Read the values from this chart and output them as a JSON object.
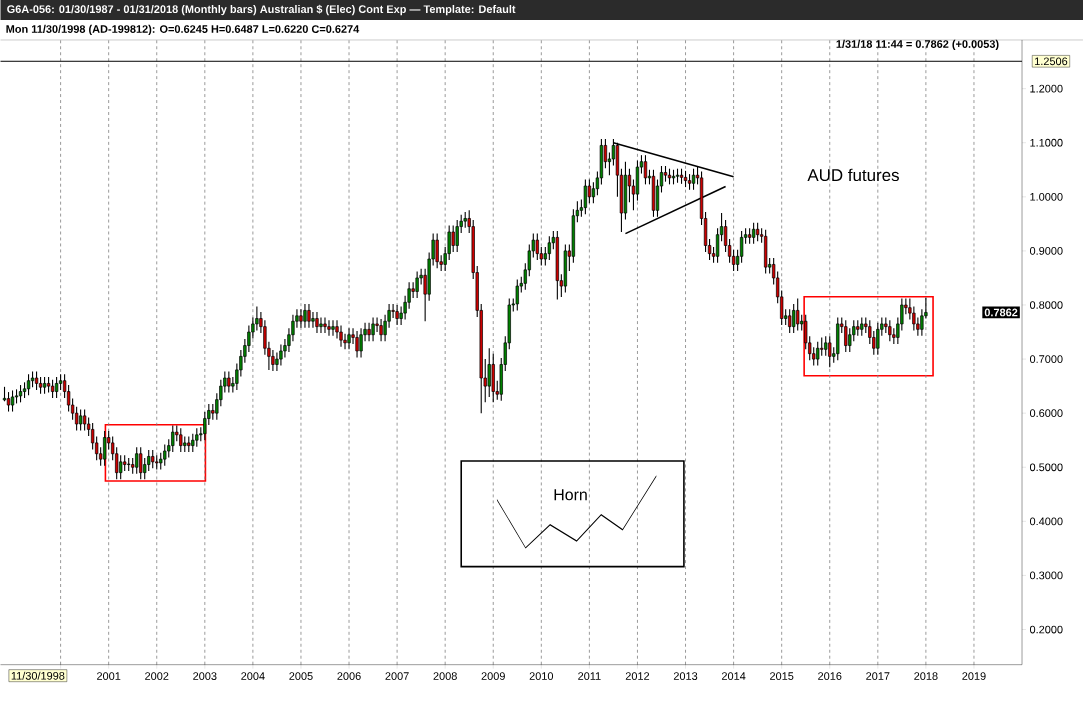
{
  "chart_data": {
    "type": "candlestick",
    "title": "G6A-056:  01/30/1987 - 01/31/2018  (Monthly bars)   Australian $ (Elec) Cont Exp  —  Template: Default",
    "subtitle": "Mon  11/30/1998 (AD-199812):  O=0.6245  H=0.6487  L=0.6220  C=0.6274",
    "annotations": [
      "AUD futures",
      "Horn",
      "1/31/18 11:44 = 0.7862 (+0.0053)",
      "11/30/1998",
      {
        "text": "0.7862",
        "y": 0.7862
      }
    ],
    "xlim": [
      "1998-10",
      "2020-01"
    ],
    "xticks": [
      {
        "value": "2000",
        "label": null
      },
      "2001",
      "2002",
      "2003",
      "2004",
      "2005",
      "2006",
      "2007",
      "2008",
      "2009",
      "2010",
      "2011",
      "2012",
      "2013",
      "2014",
      "2015",
      "2016",
      "2017",
      "2018",
      "2019"
    ],
    "ylim": [
      0.135,
      1.29
    ],
    "yticks": [
      {
        "value": 0.2,
        "label": "0.2000"
      },
      {
        "value": 0.3,
        "label": "0.3000"
      },
      {
        "value": 0.4,
        "label": "0.4000"
      },
      {
        "value": 0.5,
        "label": "0.5000"
      },
      {
        "value": 0.6,
        "label": "0.6000"
      },
      {
        "value": 0.7,
        "label": "0.7000"
      },
      {
        "value": 0.8,
        "label": "0.8000"
      },
      {
        "value": 0.9,
        "label": "0.9000"
      },
      {
        "value": 1.0,
        "label": "1.0000"
      },
      {
        "value": 1.1,
        "label": "1.1000"
      },
      {
        "value": 1.2,
        "label": "1.2000"
      }
    ],
    "grid": "x",
    "ref_lines": [
      {
        "axis": "y",
        "value": 1.2506,
        "label": "1.2506",
        "color": "#000000"
      }
    ],
    "series": [
      {
        "type": "line",
        "color": "#000000",
        "x": [
          "2011-07",
          "2014-01"
        ],
        "values": [
          1.1,
          1.037
        ]
      },
      {
        "type": "line",
        "color": "#000000",
        "x": [
          "2011-10",
          "2013-11"
        ],
        "values": [
          0.932,
          1.019
        ]
      },
      {
        "type": "candlestick",
        "color": "#000000",
        "x": [
          "1998-11",
          "1998-12",
          "1999-01",
          "1999-02",
          "1999-03",
          "1999-04",
          "1999-05",
          "1999-06",
          "1999-07",
          "1999-08",
          "1999-09",
          "1999-10",
          "1999-11",
          "1999-12",
          "2000-01",
          "2000-02",
          "2000-03",
          "2000-04",
          "2000-05",
          "2000-06",
          "2000-07",
          "2000-08",
          "2000-09",
          "2000-10",
          "2000-11",
          "2000-12",
          "2001-01",
          "2001-02",
          "2001-03",
          "2001-04",
          "2001-05",
          "2001-06",
          "2001-07",
          "2001-08",
          "2001-09",
          "2001-10",
          "2001-11",
          "2001-12",
          "2002-01",
          "2002-02",
          "2002-03",
          "2002-04",
          "2002-05",
          "2002-06",
          "2002-07",
          "2002-08",
          "2002-09",
          "2002-10",
          "2002-11",
          "2002-12",
          "2003-01",
          "2003-02",
          "2003-03",
          "2003-04",
          "2003-05",
          "2003-06",
          "2003-07",
          "2003-08",
          "2003-09",
          "2003-10",
          "2003-11",
          "2003-12",
          "2004-01",
          "2004-02",
          "2004-03",
          "2004-04",
          "2004-05",
          "2004-06",
          "2004-07",
          "2004-08",
          "2004-09",
          "2004-10",
          "2004-11",
          "2004-12",
          "2005-01",
          "2005-02",
          "2005-03",
          "2005-04",
          "2005-05",
          "2005-06",
          "2005-07",
          "2005-08",
          "2005-09",
          "2005-10",
          "2005-11",
          "2005-12",
          "2006-01",
          "2006-02",
          "2006-03",
          "2006-04",
          "2006-05",
          "2006-06",
          "2006-07",
          "2006-08",
          "2006-09",
          "2006-10",
          "2006-11",
          "2006-12",
          "2007-01",
          "2007-02",
          "2007-03",
          "2007-04",
          "2007-05",
          "2007-06",
          "2007-07",
          "2007-08",
          "2007-09",
          "2007-10",
          "2007-11",
          "2007-12",
          "2008-01",
          "2008-02",
          "2008-03",
          "2008-04",
          "2008-05",
          "2008-06",
          "2008-07",
          "2008-08",
          "2008-09",
          "2008-10",
          "2008-11",
          "2008-12",
          "2009-01",
          "2009-02",
          "2009-03",
          "2009-04",
          "2009-05",
          "2009-06",
          "2009-07",
          "2009-08",
          "2009-09",
          "2009-10",
          "2009-11",
          "2009-12",
          "2010-01",
          "2010-02",
          "2010-03",
          "2010-04",
          "2010-05",
          "2010-06",
          "2010-07",
          "2010-08",
          "2010-09",
          "2010-10",
          "2010-11",
          "2010-12",
          "2011-01",
          "2011-02",
          "2011-03",
          "2011-04",
          "2011-05",
          "2011-06",
          "2011-07",
          "2011-08",
          "2011-09",
          "2011-10",
          "2011-11",
          "2011-12",
          "2012-01",
          "2012-02",
          "2012-03",
          "2012-04",
          "2012-05",
          "2012-06",
          "2012-07",
          "2012-08",
          "2012-09",
          "2012-10",
          "2012-11",
          "2012-12",
          "2013-01",
          "2013-02",
          "2013-03",
          "2013-04",
          "2013-05",
          "2013-06",
          "2013-07",
          "2013-08",
          "2013-09",
          "2013-10",
          "2013-11",
          "2013-12",
          "2014-01",
          "2014-02",
          "2014-03",
          "2014-04",
          "2014-05",
          "2014-06",
          "2014-07",
          "2014-08",
          "2014-09",
          "2014-10",
          "2014-11",
          "2014-12",
          "2015-01",
          "2015-02",
          "2015-03",
          "2015-04",
          "2015-05",
          "2015-06",
          "2015-07",
          "2015-08",
          "2015-09",
          "2015-10",
          "2015-11",
          "2015-12",
          "2016-01",
          "2016-02",
          "2016-03",
          "2016-04",
          "2016-05",
          "2016-06",
          "2016-07",
          "2016-08",
          "2016-09",
          "2016-10",
          "2016-11",
          "2016-12",
          "2017-01",
          "2017-02",
          "2017-03",
          "2017-04",
          "2017-05",
          "2017-06",
          "2017-07",
          "2017-08",
          "2017-09",
          "2017-10",
          "2017-11",
          "2017-12",
          "2018-01"
        ],
        "ohlc": [
          [
            0.6245,
            0.6487,
            0.622,
            0.6274
          ],
          [
            0.627,
            0.639,
            0.603,
            0.615
          ],
          [
            0.615,
            0.642,
            0.603,
            0.63
          ],
          [
            0.63,
            0.644,
            0.618,
            0.632
          ],
          [
            0.632,
            0.652,
            0.62,
            0.64
          ],
          [
            0.64,
            0.657,
            0.628,
            0.645
          ],
          [
            0.645,
            0.672,
            0.633,
            0.66
          ],
          [
            0.66,
            0.677,
            0.648,
            0.665
          ],
          [
            0.665,
            0.677,
            0.643,
            0.655
          ],
          [
            0.655,
            0.667,
            0.636,
            0.648
          ],
          [
            0.648,
            0.667,
            0.636,
            0.655
          ],
          [
            0.655,
            0.667,
            0.638,
            0.65
          ],
          [
            0.65,
            0.662,
            0.628,
            0.64
          ],
          [
            0.64,
            0.667,
            0.628,
            0.655
          ],
          [
            0.655,
            0.672,
            0.643,
            0.66
          ],
          [
            0.66,
            0.672,
            0.628,
            0.64
          ],
          [
            0.64,
            0.652,
            0.603,
            0.615
          ],
          [
            0.615,
            0.627,
            0.588,
            0.6
          ],
          [
            0.6,
            0.612,
            0.568,
            0.58
          ],
          [
            0.58,
            0.607,
            0.568,
            0.595
          ],
          [
            0.595,
            0.607,
            0.568,
            0.58
          ],
          [
            0.58,
            0.592,
            0.558,
            0.57
          ],
          [
            0.57,
            0.582,
            0.533,
            0.545
          ],
          [
            0.545,
            0.557,
            0.513,
            0.525
          ],
          [
            0.525,
            0.537,
            0.503,
            0.515
          ],
          [
            0.515,
            0.567,
            0.503,
            0.555
          ],
          [
            0.555,
            0.567,
            0.533,
            0.545
          ],
          [
            0.545,
            0.557,
            0.513,
            0.525
          ],
          [
            0.525,
            0.537,
            0.478,
            0.49
          ],
          [
            0.49,
            0.522,
            0.478,
            0.51
          ],
          [
            0.51,
            0.522,
            0.493,
            0.505
          ],
          [
            0.505,
            0.517,
            0.493,
            0.506
          ],
          [
            0.505,
            0.517,
            0.488,
            0.5
          ],
          [
            0.5,
            0.537,
            0.488,
            0.525
          ],
          [
            0.525,
            0.537,
            0.478,
            0.49
          ],
          [
            0.49,
            0.517,
            0.478,
            0.505
          ],
          [
            0.505,
            0.532,
            0.493,
            0.52
          ],
          [
            0.52,
            0.532,
            0.498,
            0.51
          ],
          [
            0.51,
            0.522,
            0.496,
            0.508
          ],
          [
            0.508,
            0.527,
            0.496,
            0.515
          ],
          [
            0.515,
            0.542,
            0.503,
            0.53
          ],
          [
            0.53,
            0.552,
            0.518,
            0.54
          ],
          [
            0.54,
            0.577,
            0.528,
            0.565
          ],
          [
            0.565,
            0.577,
            0.548,
            0.56
          ],
          [
            0.56,
            0.572,
            0.528,
            0.54
          ],
          [
            0.54,
            0.557,
            0.528,
            0.545
          ],
          [
            0.545,
            0.557,
            0.528,
            0.54
          ],
          [
            0.54,
            0.562,
            0.528,
            0.55
          ],
          [
            0.55,
            0.572,
            0.538,
            0.56
          ],
          [
            0.56,
            0.574,
            0.548,
            0.562
          ],
          [
            0.562,
            0.602,
            0.55,
            0.59
          ],
          [
            0.59,
            0.617,
            0.578,
            0.605
          ],
          [
            0.605,
            0.617,
            0.588,
            0.6
          ],
          [
            0.6,
            0.637,
            0.588,
            0.625
          ],
          [
            0.625,
            0.662,
            0.613,
            0.65
          ],
          [
            0.65,
            0.677,
            0.638,
            0.665
          ],
          [
            0.665,
            0.677,
            0.638,
            0.65
          ],
          [
            0.65,
            0.667,
            0.638,
            0.655
          ],
          [
            0.655,
            0.692,
            0.643,
            0.68
          ],
          [
            0.68,
            0.717,
            0.668,
            0.705
          ],
          [
            0.705,
            0.737,
            0.693,
            0.725
          ],
          [
            0.725,
            0.762,
            0.713,
            0.75
          ],
          [
            0.75,
            0.777,
            0.738,
            0.765
          ],
          [
            0.765,
            0.797,
            0.753,
            0.775
          ],
          [
            0.775,
            0.787,
            0.748,
            0.76
          ],
          [
            0.76,
            0.772,
            0.708,
            0.72
          ],
          [
            0.72,
            0.732,
            0.68,
            0.705
          ],
          [
            0.705,
            0.717,
            0.678,
            0.69
          ],
          [
            0.69,
            0.712,
            0.678,
            0.7
          ],
          [
            0.7,
            0.727,
            0.688,
            0.715
          ],
          [
            0.715,
            0.737,
            0.703,
            0.725
          ],
          [
            0.725,
            0.757,
            0.713,
            0.745
          ],
          [
            0.745,
            0.782,
            0.733,
            0.77
          ],
          [
            0.77,
            0.792,
            0.758,
            0.78
          ],
          [
            0.78,
            0.792,
            0.758,
            0.77
          ],
          [
            0.77,
            0.802,
            0.758,
            0.79
          ],
          [
            0.79,
            0.802,
            0.758,
            0.77
          ],
          [
            0.77,
            0.787,
            0.758,
            0.775
          ],
          [
            0.775,
            0.787,
            0.748,
            0.76
          ],
          [
            0.76,
            0.777,
            0.748,
            0.765
          ],
          [
            0.765,
            0.777,
            0.748,
            0.76
          ],
          [
            0.76,
            0.772,
            0.743,
            0.755
          ],
          [
            0.755,
            0.772,
            0.743,
            0.76
          ],
          [
            0.76,
            0.772,
            0.738,
            0.75
          ],
          [
            0.75,
            0.762,
            0.723,
            0.735
          ],
          [
            0.735,
            0.747,
            0.718,
            0.73
          ],
          [
            0.73,
            0.757,
            0.718,
            0.745
          ],
          [
            0.745,
            0.757,
            0.728,
            0.74
          ],
          [
            0.74,
            0.752,
            0.703,
            0.715
          ],
          [
            0.715,
            0.757,
            0.703,
            0.745
          ],
          [
            0.745,
            0.767,
            0.733,
            0.755
          ],
          [
            0.755,
            0.767,
            0.733,
            0.745
          ],
          [
            0.745,
            0.777,
            0.733,
            0.765
          ],
          [
            0.765,
            0.777,
            0.75,
            0.762
          ],
          [
            0.762,
            0.774,
            0.733,
            0.745
          ],
          [
            0.745,
            0.782,
            0.733,
            0.77
          ],
          [
            0.77,
            0.802,
            0.758,
            0.79
          ],
          [
            0.79,
            0.802,
            0.776,
            0.788
          ],
          [
            0.788,
            0.8,
            0.763,
            0.775
          ],
          [
            0.775,
            0.797,
            0.763,
            0.785
          ],
          [
            0.785,
            0.817,
            0.773,
            0.805
          ],
          [
            0.805,
            0.842,
            0.793,
            0.83
          ],
          [
            0.83,
            0.842,
            0.813,
            0.825
          ],
          [
            0.825,
            0.862,
            0.813,
            0.85
          ],
          [
            0.85,
            0.867,
            0.838,
            0.855
          ],
          [
            0.855,
            0.867,
            0.77,
            0.82
          ],
          [
            0.82,
            0.897,
            0.808,
            0.885
          ],
          [
            0.885,
            0.932,
            0.873,
            0.92
          ],
          [
            0.92,
            0.932,
            0.868,
            0.88
          ],
          [
            0.88,
            0.892,
            0.863,
            0.875
          ],
          [
            0.875,
            0.907,
            0.863,
            0.895
          ],
          [
            0.895,
            0.947,
            0.883,
            0.935
          ],
          [
            0.935,
            0.947,
            0.898,
            0.91
          ],
          [
            0.91,
            0.957,
            0.898,
            0.945
          ],
          [
            0.945,
            0.967,
            0.933,
            0.955
          ],
          [
            0.955,
            0.972,
            0.943,
            0.96
          ],
          [
            0.96,
            0.975,
            0.933,
            0.945
          ],
          [
            0.945,
            0.957,
            0.848,
            0.86
          ],
          [
            0.86,
            0.872,
            0.778,
            0.79
          ],
          [
            0.79,
            0.802,
            0.6,
            0.665
          ],
          [
            0.665,
            0.7,
            0.62,
            0.65
          ],
          [
            0.65,
            0.72,
            0.63,
            0.69
          ],
          [
            0.69,
            0.71,
            0.62,
            0.64
          ],
          [
            0.64,
            0.66,
            0.625,
            0.635
          ],
          [
            0.635,
            0.702,
            0.623,
            0.69
          ],
          [
            0.69,
            0.742,
            0.678,
            0.73
          ],
          [
            0.73,
            0.812,
            0.718,
            0.8
          ],
          [
            0.8,
            0.812,
            0.788,
            0.802
          ],
          [
            0.802,
            0.847,
            0.79,
            0.835
          ],
          [
            0.835,
            0.852,
            0.823,
            0.84
          ],
          [
            0.84,
            0.877,
            0.828,
            0.865
          ],
          [
            0.865,
            0.912,
            0.853,
            0.9
          ],
          [
            0.9,
            0.932,
            0.888,
            0.92
          ],
          [
            0.92,
            0.932,
            0.883,
            0.895
          ],
          [
            0.895,
            0.907,
            0.873,
            0.885
          ],
          [
            0.885,
            0.907,
            0.873,
            0.895
          ],
          [
            0.895,
            0.927,
            0.883,
            0.915
          ],
          [
            0.915,
            0.937,
            0.903,
            0.925
          ],
          [
            0.925,
            0.937,
            0.81,
            0.845
          ],
          [
            0.845,
            0.857,
            0.815,
            0.835
          ],
          [
            0.835,
            0.912,
            0.823,
            0.9
          ],
          [
            0.9,
            0.912,
            0.863,
            0.89
          ],
          [
            0.89,
            0.977,
            0.878,
            0.965
          ],
          [
            0.965,
            0.992,
            0.953,
            0.975
          ],
          [
            0.975,
            0.995,
            0.963,
            0.98
          ],
          [
            0.98,
            1.032,
            0.968,
            1.02
          ],
          [
            1.02,
            1.032,
            0.988,
            1.0
          ],
          [
            1.0,
            1.027,
            0.988,
            1.015
          ],
          [
            1.015,
            1.047,
            1.003,
            1.035
          ],
          [
            1.035,
            1.107,
            1.023,
            1.095
          ],
          [
            1.095,
            1.107,
            1.053,
            1.065
          ],
          [
            1.065,
            1.082,
            1.04,
            1.07
          ],
          [
            1.07,
            1.107,
            1.058,
            1.095
          ],
          [
            1.095,
            1.1,
            1.0,
            1.04
          ],
          [
            1.04,
            1.052,
            0.935,
            0.97
          ],
          [
            0.97,
            1.065,
            0.958,
            1.04
          ],
          [
            1.04,
            1.052,
            0.99,
            1.02
          ],
          [
            1.02,
            1.032,
            0.975,
            1.005
          ],
          [
            1.005,
            1.067,
            0.993,
            1.055
          ],
          [
            1.055,
            1.077,
            1.043,
            1.065
          ],
          [
            1.065,
            1.077,
            1.023,
            1.035
          ],
          [
            1.035,
            1.05,
            1.023,
            1.038
          ],
          [
            1.038,
            1.05,
            0.963,
            0.975
          ],
          [
            0.975,
            1.032,
            0.963,
            1.02
          ],
          [
            1.02,
            1.057,
            1.008,
            1.045
          ],
          [
            1.045,
            1.057,
            1.028,
            1.04
          ],
          [
            1.04,
            1.052,
            1.023,
            1.035
          ],
          [
            1.035,
            1.05,
            1.023,
            1.038
          ],
          [
            1.038,
            1.052,
            1.026,
            1.04
          ],
          [
            1.04,
            1.052,
            1.024,
            1.036
          ],
          [
            1.036,
            1.048,
            1.018,
            1.03
          ],
          [
            1.03,
            1.042,
            1.013,
            1.025
          ],
          [
            1.025,
            1.052,
            1.013,
            1.04
          ],
          [
            1.04,
            1.057,
            1.023,
            1.035
          ],
          [
            1.035,
            1.047,
            0.948,
            0.96
          ],
          [
            0.96,
            0.972,
            0.898,
            0.91
          ],
          [
            0.91,
            0.922,
            0.883,
            0.895
          ],
          [
            0.895,
            0.907,
            0.878,
            0.89
          ],
          [
            0.89,
            0.942,
            0.878,
            0.93
          ],
          [
            0.93,
            0.97,
            0.918,
            0.945
          ],
          [
            0.945,
            0.957,
            0.898,
            0.91
          ],
          [
            0.91,
            0.922,
            0.878,
            0.89
          ],
          [
            0.89,
            0.902,
            0.863,
            0.875
          ],
          [
            0.875,
            0.902,
            0.863,
            0.89
          ],
          [
            0.89,
            0.937,
            0.878,
            0.925
          ],
          [
            0.925,
            0.942,
            0.913,
            0.93
          ],
          [
            0.93,
            0.942,
            0.913,
            0.925
          ],
          [
            0.925,
            0.952,
            0.913,
            0.94
          ],
          [
            0.94,
            0.952,
            0.918,
            0.93
          ],
          [
            0.93,
            0.942,
            0.915,
            0.927
          ],
          [
            0.927,
            0.939,
            0.858,
            0.87
          ],
          [
            0.87,
            0.887,
            0.858,
            0.875
          ],
          [
            0.875,
            0.887,
            0.838,
            0.85
          ],
          [
            0.85,
            0.862,
            0.803,
            0.815
          ],
          [
            0.815,
            0.827,
            0.763,
            0.775
          ],
          [
            0.775,
            0.792,
            0.763,
            0.78
          ],
          [
            0.78,
            0.792,
            0.748,
            0.76
          ],
          [
            0.76,
            0.802,
            0.748,
            0.79
          ],
          [
            0.79,
            0.812,
            0.753,
            0.765
          ],
          [
            0.765,
            0.782,
            0.753,
            0.77
          ],
          [
            0.77,
            0.782,
            0.718,
            0.73
          ],
          [
            0.73,
            0.742,
            0.698,
            0.71
          ],
          [
            0.71,
            0.722,
            0.688,
            0.7
          ],
          [
            0.7,
            0.732,
            0.688,
            0.72
          ],
          [
            0.72,
            0.74,
            0.706,
            0.718
          ],
          [
            0.718,
            0.742,
            0.706,
            0.73
          ],
          [
            0.73,
            0.742,
            0.685,
            0.705
          ],
          [
            0.705,
            0.722,
            0.693,
            0.71
          ],
          [
            0.71,
            0.777,
            0.698,
            0.765
          ],
          [
            0.765,
            0.777,
            0.748,
            0.76
          ],
          [
            0.76,
            0.772,
            0.713,
            0.725
          ],
          [
            0.725,
            0.757,
            0.713,
            0.745
          ],
          [
            0.745,
            0.772,
            0.733,
            0.76
          ],
          [
            0.76,
            0.772,
            0.743,
            0.755
          ],
          [
            0.755,
            0.777,
            0.743,
            0.765
          ],
          [
            0.765,
            0.777,
            0.748,
            0.76
          ],
          [
            0.76,
            0.772,
            0.728,
            0.74
          ],
          [
            0.74,
            0.752,
            0.708,
            0.72
          ],
          [
            0.72,
            0.767,
            0.708,
            0.755
          ],
          [
            0.755,
            0.777,
            0.743,
            0.765
          ],
          [
            0.765,
            0.777,
            0.748,
            0.76
          ],
          [
            0.76,
            0.772,
            0.733,
            0.745
          ],
          [
            0.745,
            0.757,
            0.728,
            0.74
          ],
          [
            0.74,
            0.777,
            0.728,
            0.765
          ],
          [
            0.765,
            0.812,
            0.753,
            0.8
          ],
          [
            0.8,
            0.812,
            0.783,
            0.795
          ],
          [
            0.795,
            0.812,
            0.773,
            0.785
          ],
          [
            0.785,
            0.797,
            0.753,
            0.765
          ],
          [
            0.765,
            0.777,
            0.743,
            0.755
          ],
          [
            0.755,
            0.792,
            0.743,
            0.78
          ],
          [
            0.78,
            0.8135,
            0.775,
            0.7862
          ]
        ]
      }
    ]
  }
}
